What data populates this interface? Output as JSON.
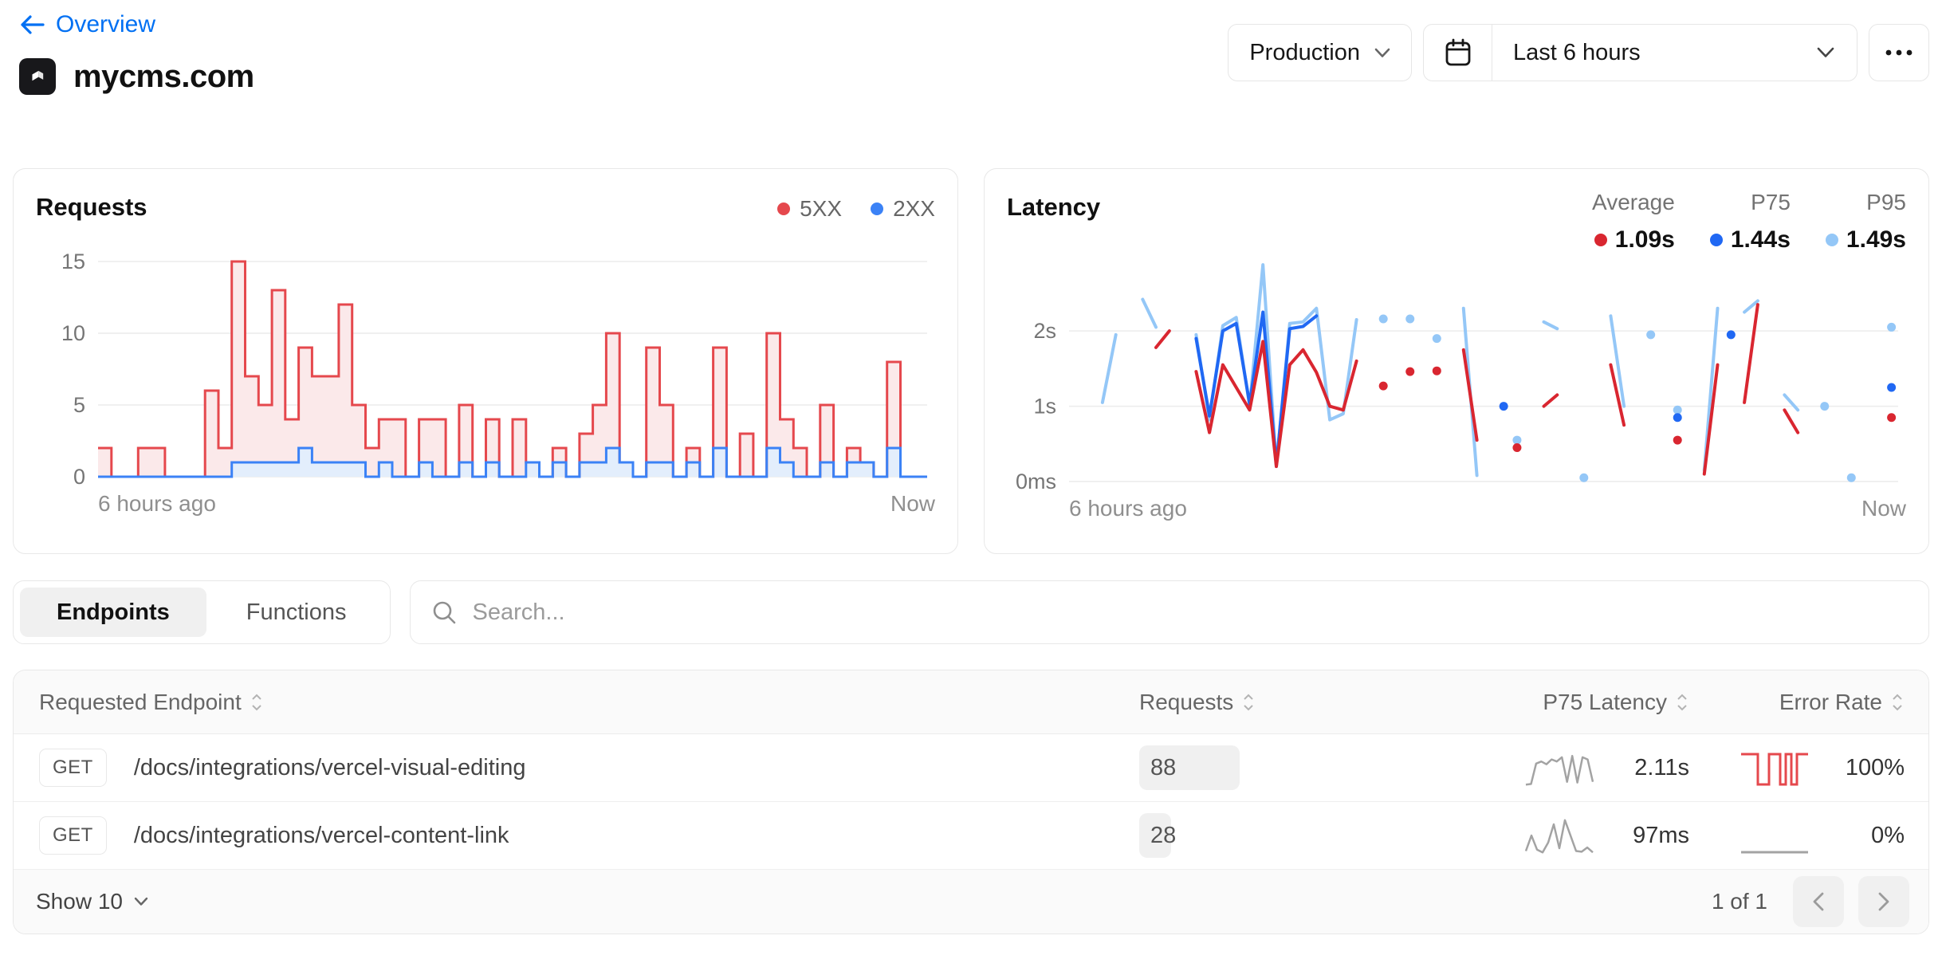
{
  "header": {
    "back_label": "Overview",
    "site_name": "mycms.com",
    "environment": "Production",
    "time_range": "Last 6 hours"
  },
  "tabs": [
    {
      "label": "Endpoints",
      "active": true
    },
    {
      "label": "Functions",
      "active": false
    }
  ],
  "search": {
    "placeholder": "Search..."
  },
  "chart_data": [
    {
      "type": "area",
      "title": "Requests",
      "legend": [
        {
          "label": "5XX",
          "color": "#e5484d"
        },
        {
          "label": "2XX",
          "color": "#3b82f6"
        }
      ],
      "ylim": [
        0,
        16
      ],
      "y_ticks": [
        0,
        5,
        10,
        15
      ],
      "x_start_label": "6 hours ago",
      "x_end_label": "Now",
      "series": [
        {
          "name": "total",
          "color": "#e5484d",
          "fill": "#fbe9ea",
          "values": [
            2,
            0,
            0,
            2,
            2,
            0,
            0,
            0,
            6,
            2,
            15,
            7,
            5,
            13,
            4,
            9,
            7,
            7,
            12,
            5,
            2,
            4,
            4,
            0,
            4,
            4,
            0,
            5,
            0,
            4,
            0,
            4,
            1,
            0,
            2,
            0,
            3,
            5,
            10,
            1,
            0,
            9,
            5,
            0,
            2,
            0,
            9,
            0,
            3,
            0,
            10,
            4,
            2,
            0,
            5,
            0,
            2,
            1,
            0,
            8,
            0,
            0
          ]
        },
        {
          "name": "2XX",
          "color": "#3b82f6",
          "fill": "#e3eefc",
          "values": [
            0,
            0,
            0,
            0,
            0,
            0,
            0,
            0,
            0,
            0,
            1,
            1,
            1,
            1,
            1,
            2,
            1,
            1,
            1,
            1,
            0,
            1,
            0,
            0,
            1,
            0,
            0,
            1,
            0,
            1,
            0,
            0,
            1,
            0,
            1,
            0,
            1,
            1,
            2,
            1,
            0,
            1,
            1,
            0,
            1,
            0,
            2,
            0,
            0,
            0,
            2,
            1,
            0,
            0,
            1,
            0,
            1,
            1,
            0,
            2,
            0,
            0
          ]
        }
      ]
    },
    {
      "type": "line",
      "title": "Latency",
      "stats": [
        {
          "label": "Average",
          "value": "1.09s",
          "color": "#d92630"
        },
        {
          "label": "P75",
          "value": "1.44s",
          "color": "#2068f3"
        },
        {
          "label": "P95",
          "value": "1.49s",
          "color": "#94c7f7"
        }
      ],
      "ylim": [
        0,
        3.05
      ],
      "y_ticks": [
        0,
        1,
        2
      ],
      "y_tick_labels": [
        "0ms",
        "1s",
        "2s"
      ],
      "x_start_label": "6 hours ago",
      "x_end_label": "Now",
      "series": [
        {
          "name": "P95",
          "color": "#94c7f7",
          "values": [
            null,
            null,
            1.05,
            1.95,
            null,
            2.42,
            2.05,
            null,
            null,
            1.95,
            0.82,
            2.07,
            2.18,
            1.0,
            2.88,
            0.2,
            2.1,
            2.12,
            2.3,
            0.82,
            0.9,
            2.15,
            null,
            2.16,
            null,
            2.16,
            null,
            1.9,
            null,
            2.3,
            0.08,
            null,
            null,
            0.55,
            null,
            2.12,
            2.03,
            null,
            0.05,
            null,
            2.2,
            1.0,
            null,
            1.95,
            null,
            0.95,
            null,
            0.15,
            2.3,
            null,
            2.25,
            2.4,
            null,
            1.15,
            0.95,
            null,
            1.0,
            null,
            0.05,
            null,
            null,
            2.05
          ]
        },
        {
          "name": "P75",
          "color": "#2068f3",
          "values": [
            null,
            null,
            null,
            null,
            null,
            null,
            null,
            null,
            null,
            1.9,
            0.87,
            2.0,
            2.1,
            1.03,
            2.25,
            0.22,
            2.03,
            2.06,
            2.2,
            null,
            null,
            null,
            null,
            null,
            null,
            null,
            null,
            null,
            null,
            null,
            null,
            null,
            1.0,
            null,
            null,
            null,
            null,
            null,
            null,
            null,
            null,
            null,
            null,
            null,
            null,
            0.85,
            null,
            null,
            null,
            1.95,
            null,
            null,
            null,
            null,
            null,
            null,
            null,
            null,
            null,
            null,
            null,
            1.25
          ]
        },
        {
          "name": "Average",
          "color": "#d92630",
          "values": [
            null,
            null,
            null,
            null,
            null,
            null,
            1.78,
            2.0,
            null,
            1.46,
            0.65,
            1.55,
            1.25,
            0.95,
            1.86,
            0.2,
            1.55,
            1.75,
            1.45,
            1.0,
            0.95,
            1.6,
            null,
            1.27,
            null,
            1.46,
            null,
            1.47,
            null,
            1.75,
            0.55,
            null,
            null,
            0.45,
            null,
            1.0,
            1.15,
            null,
            null,
            null,
            1.55,
            0.75,
            null,
            null,
            null,
            0.55,
            null,
            0.1,
            1.55,
            null,
            1.05,
            2.35,
            null,
            0.95,
            0.65,
            null,
            null,
            null,
            null,
            null,
            null,
            0.85
          ]
        }
      ]
    }
  ],
  "table": {
    "columns": [
      "Requested Endpoint",
      "Requests",
      "P75 Latency",
      "Error Rate"
    ],
    "max_requests": 88,
    "rows": [
      {
        "method": "GET",
        "path": "/docs/integrations/vercel-visual-editing",
        "requests": 88,
        "p75_latency": "2.11s",
        "error_rate": "100%",
        "latency_spark": [
          0.1,
          0.15,
          1.6,
          1.75,
          1.55,
          1.9,
          1.75,
          2.05,
          0.3,
          2.15,
          0.25,
          2.05,
          1.9,
          0.3
        ],
        "error_spark": [
          1,
          1,
          1,
          0,
          0,
          1,
          1,
          0,
          1,
          0,
          1,
          1
        ],
        "error_spark_color": "#e5484d",
        "spark_color": "#a3a3a3"
      },
      {
        "method": "GET",
        "path": "/docs/integrations/vercel-content-link",
        "requests": 28,
        "p75_latency": "97ms",
        "error_rate": "0%",
        "latency_spark": [
          0.2,
          1.3,
          0.3,
          0.1,
          0.8,
          2.1,
          0.4,
          2.4,
          1.3,
          0.2,
          0.15,
          0.45,
          0.1
        ],
        "error_spark": [
          0,
          0,
          0,
          0,
          0,
          0,
          0,
          0
        ],
        "error_spark_color": "#a3a3a3",
        "spark_color": "#a3a3a3"
      }
    ]
  },
  "footer": {
    "page_size_label": "Show 10",
    "page_info": "1 of 1"
  }
}
